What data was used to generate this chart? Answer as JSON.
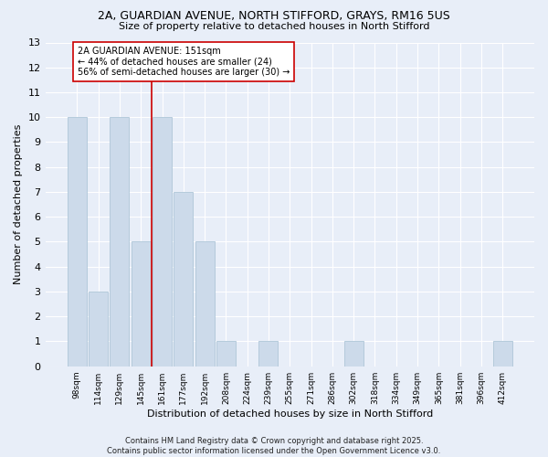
{
  "title_line1": "2A, GUARDIAN AVENUE, NORTH STIFFORD, GRAYS, RM16 5US",
  "title_line2": "Size of property relative to detached houses in North Stifford",
  "xlabel": "Distribution of detached houses by size in North Stifford",
  "ylabel": "Number of detached properties",
  "bin_labels": [
    "98sqm",
    "114sqm",
    "129sqm",
    "145sqm",
    "161sqm",
    "177sqm",
    "192sqm",
    "208sqm",
    "224sqm",
    "239sqm",
    "255sqm",
    "271sqm",
    "286sqm",
    "302sqm",
    "318sqm",
    "334sqm",
    "349sqm",
    "365sqm",
    "381sqm",
    "396sqm",
    "412sqm"
  ],
  "bin_values": [
    10,
    3,
    10,
    5,
    10,
    7,
    5,
    1,
    0,
    1,
    0,
    0,
    0,
    1,
    0,
    0,
    0,
    0,
    0,
    0,
    1
  ],
  "bar_color": "#ccdaea",
  "bar_edge_color": "#aec6d8",
  "vline_x_index": 3.5,
  "vline_color": "#cc0000",
  "annotation_text": "2A GUARDIAN AVENUE: 151sqm\n← 44% of detached houses are smaller (24)\n56% of semi-detached houses are larger (30) →",
  "annotation_box_color": "#ffffff",
  "annotation_box_edge": "#cc0000",
  "ylim": [
    0,
    13
  ],
  "yticks": [
    0,
    1,
    2,
    3,
    4,
    5,
    6,
    7,
    8,
    9,
    10,
    11,
    12,
    13
  ],
  "background_color": "#e8eef8",
  "grid_color": "#ffffff",
  "footer_text": "Contains HM Land Registry data © Crown copyright and database right 2025.\nContains public sector information licensed under the Open Government Licence v3.0."
}
